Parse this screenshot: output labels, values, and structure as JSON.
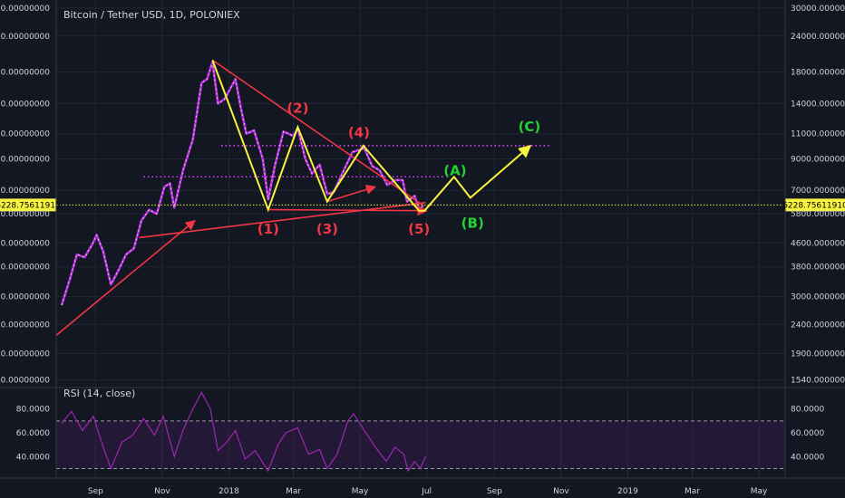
{
  "chart_data": {
    "type": "line",
    "title": "Bitcoin / Tether USD, 1D, POLONIEX",
    "scale": "log",
    "grid": true,
    "price_axis": {
      "ticks": [
        {
          "value": 30000,
          "label": "30000.00000000"
        },
        {
          "value": 24000,
          "label": "24000.00000000"
        },
        {
          "value": 18000,
          "label": "18000.00000000"
        },
        {
          "value": 14000,
          "label": "14000.00000000"
        },
        {
          "value": 11000,
          "label": "11000.00000000"
        },
        {
          "value": 9000,
          "label": "9000.00000000"
        },
        {
          "value": 7000,
          "label": "7000.00000000"
        },
        {
          "value": 5800,
          "label": "5800.00000000"
        },
        {
          "value": 4600,
          "label": "4600.00000000"
        },
        {
          "value": 3800,
          "label": "3800.00000000"
        },
        {
          "value": 3000,
          "label": "3000.00000000"
        },
        {
          "value": 2400,
          "label": "2400.00000000"
        },
        {
          "value": 1900,
          "label": "1900.00000000"
        },
        {
          "value": 1540,
          "label": "1540.00000000"
        }
      ],
      "ylim": [
        1450,
        32000
      ]
    },
    "current_price": {
      "value": 6228.7561191,
      "label": "6228.75611910",
      "color": "#f7f33e"
    },
    "time_axis": {
      "ticks": [
        "Sep",
        "Nov",
        "2018",
        "Mar",
        "May",
        "Jul",
        "Sep",
        "Nov",
        "2019",
        "Mar",
        "May"
      ],
      "range": [
        "2017-07-27",
        "2019-05-25"
      ]
    },
    "price_series": [
      {
        "x": "2017-08-01",
        "y": 2800
      },
      {
        "x": "2017-08-08",
        "y": 3400
      },
      {
        "x": "2017-08-15",
        "y": 4200
      },
      {
        "x": "2017-08-22",
        "y": 4100
      },
      {
        "x": "2017-08-29",
        "y": 4550
      },
      {
        "x": "2017-09-02",
        "y": 4900
      },
      {
        "x": "2017-09-08",
        "y": 4300
      },
      {
        "x": "2017-09-15",
        "y": 3300
      },
      {
        "x": "2017-09-22",
        "y": 3700
      },
      {
        "x": "2017-09-29",
        "y": 4200
      },
      {
        "x": "2017-10-06",
        "y": 4400
      },
      {
        "x": "2017-10-13",
        "y": 5500
      },
      {
        "x": "2017-10-20",
        "y": 6000
      },
      {
        "x": "2017-10-27",
        "y": 5800
      },
      {
        "x": "2017-11-03",
        "y": 7200
      },
      {
        "x": "2017-11-08",
        "y": 7400
      },
      {
        "x": "2017-11-12",
        "y": 6100
      },
      {
        "x": "2017-11-20",
        "y": 8200
      },
      {
        "x": "2017-11-29",
        "y": 10500
      },
      {
        "x": "2017-12-07",
        "y": 16500
      },
      {
        "x": "2017-12-12",
        "y": 17000
      },
      {
        "x": "2017-12-17",
        "y": 19500
      },
      {
        "x": "2017-12-22",
        "y": 14000
      },
      {
        "x": "2017-12-28",
        "y": 14500
      },
      {
        "x": "2018-01-07",
        "y": 17000
      },
      {
        "x": "2018-01-12",
        "y": 13500
      },
      {
        "x": "2018-01-17",
        "y": 11000
      },
      {
        "x": "2018-01-24",
        "y": 11300
      },
      {
        "x": "2018-02-01",
        "y": 9000
      },
      {
        "x": "2018-02-06",
        "y": 6500
      },
      {
        "x": "2018-02-12",
        "y": 8500
      },
      {
        "x": "2018-02-20",
        "y": 11200
      },
      {
        "x": "2018-03-01",
        "y": 10800
      },
      {
        "x": "2018-03-05",
        "y": 11500
      },
      {
        "x": "2018-03-12",
        "y": 9000
      },
      {
        "x": "2018-03-18",
        "y": 8000
      },
      {
        "x": "2018-03-25",
        "y": 8600
      },
      {
        "x": "2018-04-01",
        "y": 6800
      },
      {
        "x": "2018-04-07",
        "y": 6900
      },
      {
        "x": "2018-04-14",
        "y": 7900
      },
      {
        "x": "2018-04-24",
        "y": 9500
      },
      {
        "x": "2018-05-05",
        "y": 9800
      },
      {
        "x": "2018-05-12",
        "y": 8500
      },
      {
        "x": "2018-05-19",
        "y": 8200
      },
      {
        "x": "2018-05-26",
        "y": 7300
      },
      {
        "x": "2018-06-02",
        "y": 7600
      },
      {
        "x": "2018-06-09",
        "y": 7600
      },
      {
        "x": "2018-06-13",
        "y": 6400
      },
      {
        "x": "2018-06-20",
        "y": 6700
      },
      {
        "x": "2018-06-24",
        "y": 6000
      },
      {
        "x": "2018-06-28",
        "y": 6200
      }
    ],
    "rsi": {
      "label": "RSI (14, close)",
      "ticks": [
        {
          "value": 80,
          "label": "80.0000"
        },
        {
          "value": 60,
          "label": "60.0000"
        },
        {
          "value": 40,
          "label": "40.0000"
        }
      ],
      "overbought": 70,
      "oversold": 30,
      "ylim": [
        22,
        98
      ],
      "series": [
        {
          "x": "2017-08-01",
          "y": 68
        },
        {
          "x": "2017-08-10",
          "y": 78
        },
        {
          "x": "2017-08-20",
          "y": 62
        },
        {
          "x": "2017-08-30",
          "y": 74
        },
        {
          "x": "2017-09-08",
          "y": 48
        },
        {
          "x": "2017-09-15",
          "y": 30
        },
        {
          "x": "2017-09-25",
          "y": 52
        },
        {
          "x": "2017-10-05",
          "y": 58
        },
        {
          "x": "2017-10-15",
          "y": 72
        },
        {
          "x": "2017-10-25",
          "y": 58
        },
        {
          "x": "2017-11-02",
          "y": 74
        },
        {
          "x": "2017-11-12",
          "y": 40
        },
        {
          "x": "2017-11-20",
          "y": 62
        },
        {
          "x": "2017-11-28",
          "y": 78
        },
        {
          "x": "2017-12-07",
          "y": 94
        },
        {
          "x": "2017-12-15",
          "y": 80
        },
        {
          "x": "2017-12-22",
          "y": 45
        },
        {
          "x": "2017-12-30",
          "y": 52
        },
        {
          "x": "2018-01-07",
          "y": 62
        },
        {
          "x": "2018-01-16",
          "y": 38
        },
        {
          "x": "2018-01-25",
          "y": 45
        },
        {
          "x": "2018-02-06",
          "y": 28
        },
        {
          "x": "2018-02-15",
          "y": 50
        },
        {
          "x": "2018-02-22",
          "y": 60
        },
        {
          "x": "2018-03-05",
          "y": 64
        },
        {
          "x": "2018-03-15",
          "y": 42
        },
        {
          "x": "2018-03-25",
          "y": 46
        },
        {
          "x": "2018-04-01",
          "y": 30
        },
        {
          "x": "2018-04-10",
          "y": 42
        },
        {
          "x": "2018-04-20",
          "y": 70
        },
        {
          "x": "2018-04-25",
          "y": 76
        },
        {
          "x": "2018-05-05",
          "y": 62
        },
        {
          "x": "2018-05-15",
          "y": 48
        },
        {
          "x": "2018-05-25",
          "y": 36
        },
        {
          "x": "2018-06-02",
          "y": 48
        },
        {
          "x": "2018-06-10",
          "y": 42
        },
        {
          "x": "2018-06-14",
          "y": 28
        },
        {
          "x": "2018-06-20",
          "y": 36
        },
        {
          "x": "2018-06-25",
          "y": 30
        },
        {
          "x": "2018-06-30",
          "y": 40
        }
      ]
    },
    "annotations": {
      "wave_labels": [
        {
          "text": "(1)",
          "x": "2018-02-06",
          "y": 4950,
          "color": "#f23645"
        },
        {
          "text": "(2)",
          "x": "2018-03-05",
          "y": 13000,
          "color": "#f23645"
        },
        {
          "text": "(3)",
          "x": "2018-04-01",
          "y": 4950,
          "color": "#f23645"
        },
        {
          "text": "(4)",
          "x": "2018-04-30",
          "y": 10700,
          "color": "#f23645"
        },
        {
          "text": "(5)",
          "x": "2018-06-24",
          "y": 4950,
          "color": "#f23645"
        },
        {
          "text": "(A)",
          "x": "2018-07-27",
          "y": 7900,
          "color": "#22d334"
        },
        {
          "text": "(B)",
          "x": "2018-08-12",
          "y": 5200,
          "color": "#22d334"
        },
        {
          "text": "(C)",
          "x": "2018-10-03",
          "y": 11200,
          "color": "#22d334"
        }
      ],
      "yellow_path": [
        {
          "x": "2017-12-17",
          "y": 19800
        },
        {
          "x": "2018-02-06",
          "y": 6000
        },
        {
          "x": "2018-03-05",
          "y": 11600
        },
        {
          "x": "2018-04-01",
          "y": 6400
        },
        {
          "x": "2018-05-04",
          "y": 10000
        },
        {
          "x": "2018-06-24",
          "y": 5950
        },
        {
          "x": "2018-06-29",
          "y": 5950
        },
        {
          "x": "2018-07-26",
          "y": 7800
        },
        {
          "x": "2018-08-10",
          "y": 6600
        },
        {
          "x": "2018-10-04",
          "y": 10000
        }
      ],
      "red_lines": [
        {
          "from": {
            "x": "2017-07-27",
            "y": 2200
          },
          "to": {
            "x": "2017-12-01",
            "y": 5500
          },
          "arrow": true
        },
        {
          "from": {
            "x": "2017-10-11",
            "y": 4800
          },
          "to": {
            "x": "2018-06-30",
            "y": 6350
          },
          "arrow": false
        },
        {
          "from": {
            "x": "2017-12-17",
            "y": 19800
          },
          "to": {
            "x": "2018-06-28",
            "y": 6200
          },
          "arrow": false
        },
        {
          "from": {
            "x": "2018-02-06",
            "y": 6000
          },
          "to": {
            "x": "2018-07-01",
            "y": 5950
          },
          "arrow": true
        },
        {
          "from": {
            "x": "2018-04-01",
            "y": 6400
          },
          "to": {
            "x": "2018-05-15",
            "y": 7200
          },
          "arrow": true
        }
      ],
      "dotted_levels": [
        {
          "y": 7800,
          "from": "2017-10-15",
          "to": "2018-07-16",
          "color": "#e040fb"
        },
        {
          "y": 10000,
          "from": "2017-12-25",
          "to": "2018-10-22",
          "color": "#e040fb"
        }
      ]
    }
  }
}
